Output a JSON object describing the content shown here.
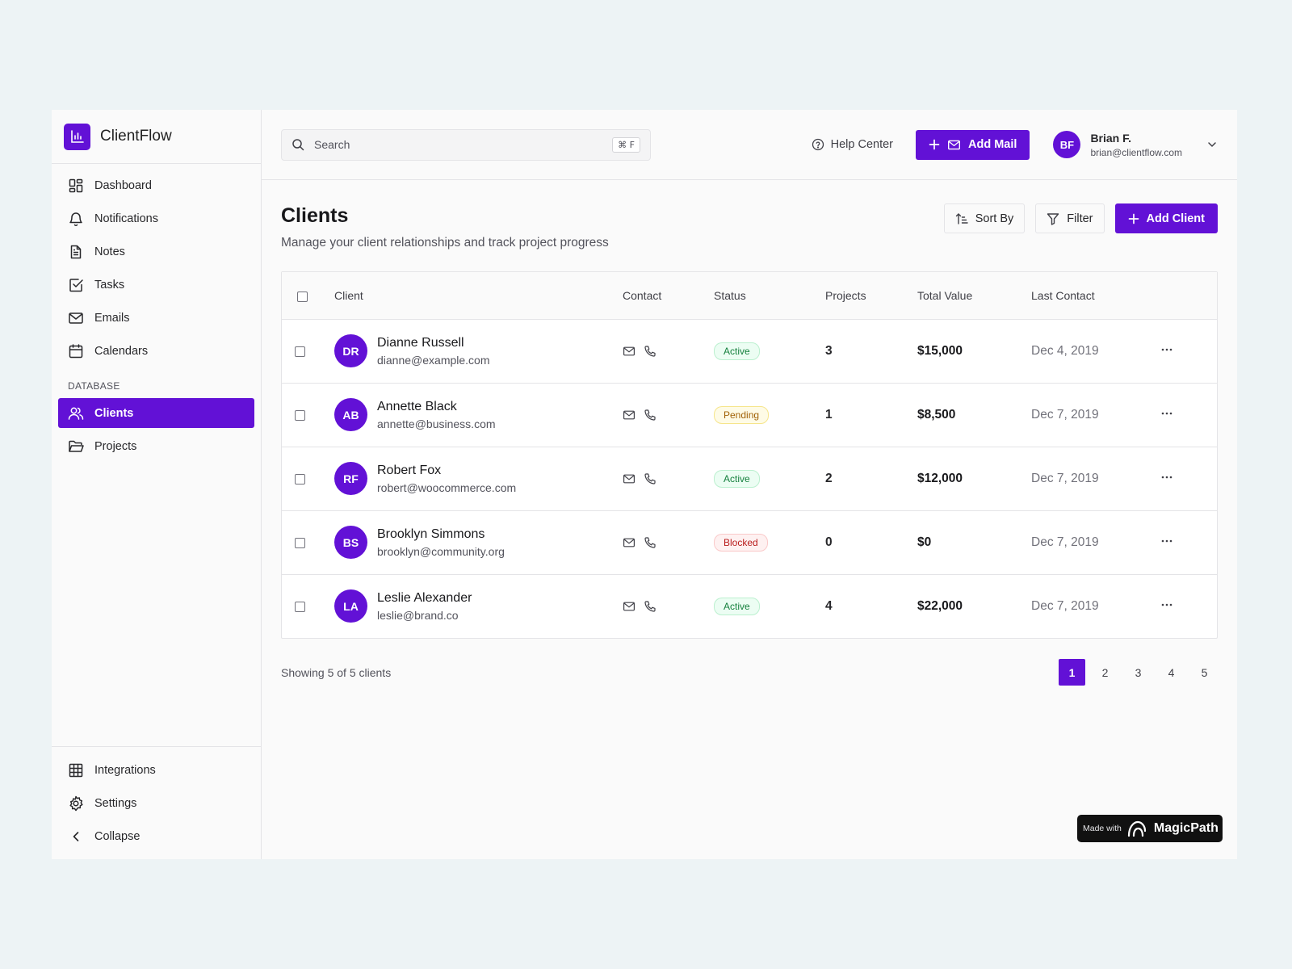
{
  "app": {
    "name": "ClientFlow"
  },
  "sidebar": {
    "items": [
      {
        "label": "Dashboard",
        "icon": "dashboard-icon"
      },
      {
        "label": "Notifications",
        "icon": "bell-icon"
      },
      {
        "label": "Notes",
        "icon": "note-icon"
      },
      {
        "label": "Tasks",
        "icon": "checkbox-icon"
      },
      {
        "label": "Emails",
        "icon": "mail-icon"
      },
      {
        "label": "Calendars",
        "icon": "calendar-icon"
      }
    ],
    "section_label": "DATABASE",
    "db_items": [
      {
        "label": "Clients",
        "icon": "users-icon",
        "active": true
      },
      {
        "label": "Projects",
        "icon": "folder-icon"
      }
    ],
    "bottom_items": [
      {
        "label": "Integrations",
        "icon": "grid-icon"
      },
      {
        "label": "Settings",
        "icon": "gear-icon"
      },
      {
        "label": "Collapse",
        "icon": "chevron-left-icon"
      }
    ]
  },
  "topbar": {
    "search_placeholder": "Search",
    "shortcut": "⌘ F",
    "help_label": "Help Center",
    "add_mail_label": "Add Mail",
    "user": {
      "initials": "BF",
      "name": "Brian F.",
      "email": "brian@clientflow.com"
    }
  },
  "page": {
    "title": "Clients",
    "subtitle": "Manage your client relationships and track project progress",
    "sort_label": "Sort By",
    "filter_label": "Filter",
    "add_client_label": "Add Client"
  },
  "table": {
    "columns": [
      "Client",
      "Contact",
      "Status",
      "Projects",
      "Total Value",
      "Last Contact"
    ],
    "rows": [
      {
        "initials": "DR",
        "name": "Dianne Russell",
        "email": "dianne@example.com",
        "status": "Active",
        "projects": "3",
        "value": "$15,000",
        "last_contact": "Dec 4, 2019"
      },
      {
        "initials": "AB",
        "name": "Annette Black",
        "email": "annette@business.com",
        "status": "Pending",
        "projects": "1",
        "value": "$8,500",
        "last_contact": "Dec 7, 2019"
      },
      {
        "initials": "RF",
        "name": "Robert Fox",
        "email": "robert@woocommerce.com",
        "status": "Active",
        "projects": "2",
        "value": "$12,000",
        "last_contact": "Dec 7, 2019"
      },
      {
        "initials": "BS",
        "name": "Brooklyn Simmons",
        "email": "brooklyn@community.org",
        "status": "Blocked",
        "projects": "0",
        "value": "$0",
        "last_contact": "Dec 7, 2019"
      },
      {
        "initials": "LA",
        "name": "Leslie Alexander",
        "email": "leslie@brand.co",
        "status": "Active",
        "projects": "4",
        "value": "$22,000",
        "last_contact": "Dec 7, 2019"
      }
    ]
  },
  "footer": {
    "showing": "Showing 5 of 5 clients",
    "pages": [
      "1",
      "2",
      "3",
      "4",
      "5"
    ],
    "current_page": "1"
  },
  "badge": {
    "made_with": "Made with",
    "brand": "MagicPath"
  },
  "colors": {
    "accent": "#6211d6",
    "background": "#edf3f5",
    "active": "#15803d",
    "pending": "#a16207",
    "blocked": "#b91c1c"
  }
}
